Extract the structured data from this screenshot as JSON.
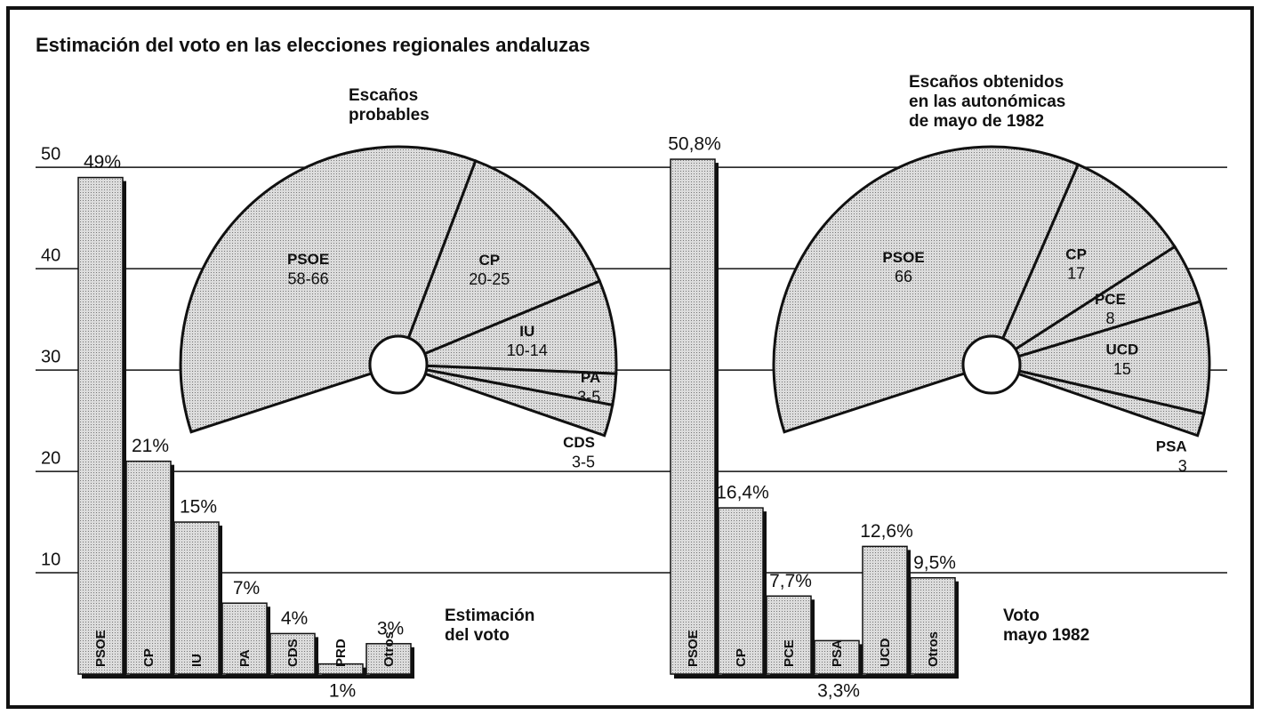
{
  "title": "Estimación del voto en las elecciones regionales andaluzas",
  "chart_data": [
    {
      "type": "bar",
      "caption": [
        "Estimación",
        "del voto"
      ],
      "categories": [
        "PSOE",
        "CP",
        "IU",
        "PA",
        "CDS",
        "PRD",
        "Otros"
      ],
      "values": [
        49,
        21,
        15,
        7,
        4,
        1,
        3
      ],
      "value_labels": [
        "49%",
        "21%",
        "15%",
        "7%",
        "4%",
        "1%",
        "3%"
      ],
      "color": "#dcdcdc",
      "ylim": [
        0,
        58
      ],
      "yticks": [
        10,
        20,
        30,
        40,
        50
      ],
      "grid": true
    },
    {
      "type": "pie",
      "title": [
        "Escaños",
        "probables"
      ],
      "categories": [
        "PSOE",
        "CP",
        "IU",
        "PA",
        "CDS"
      ],
      "values": [
        62,
        22.5,
        12,
        4,
        4
      ],
      "value_labels": [
        "58-66",
        "20-25",
        "10-14",
        "3-5",
        "3-5"
      ],
      "color": "#dcdcdc"
    },
    {
      "type": "bar",
      "caption": [
        "Voto",
        "mayo 1982"
      ],
      "categories": [
        "PSOE",
        "CP",
        "PCE",
        "PSA",
        "UCD",
        "Otros"
      ],
      "values": [
        50.8,
        16.4,
        7.7,
        3.3,
        12.6,
        9.5
      ],
      "value_labels": [
        "50,8%",
        "16,4%",
        "7,7%",
        "3,3%",
        "12,6%",
        "9,5%"
      ],
      "color": "#dcdcdc",
      "ylim": [
        0,
        58
      ]
    },
    {
      "type": "pie",
      "title": [
        "Escaños obtenidos",
        "en las autonómicas",
        "de mayo de 1982"
      ],
      "categories": [
        "PSOE",
        "CP",
        "PCE",
        "UCD",
        "PSA"
      ],
      "values": [
        66,
        17,
        8,
        15,
        3
      ],
      "color": "#dcdcdc"
    }
  ]
}
